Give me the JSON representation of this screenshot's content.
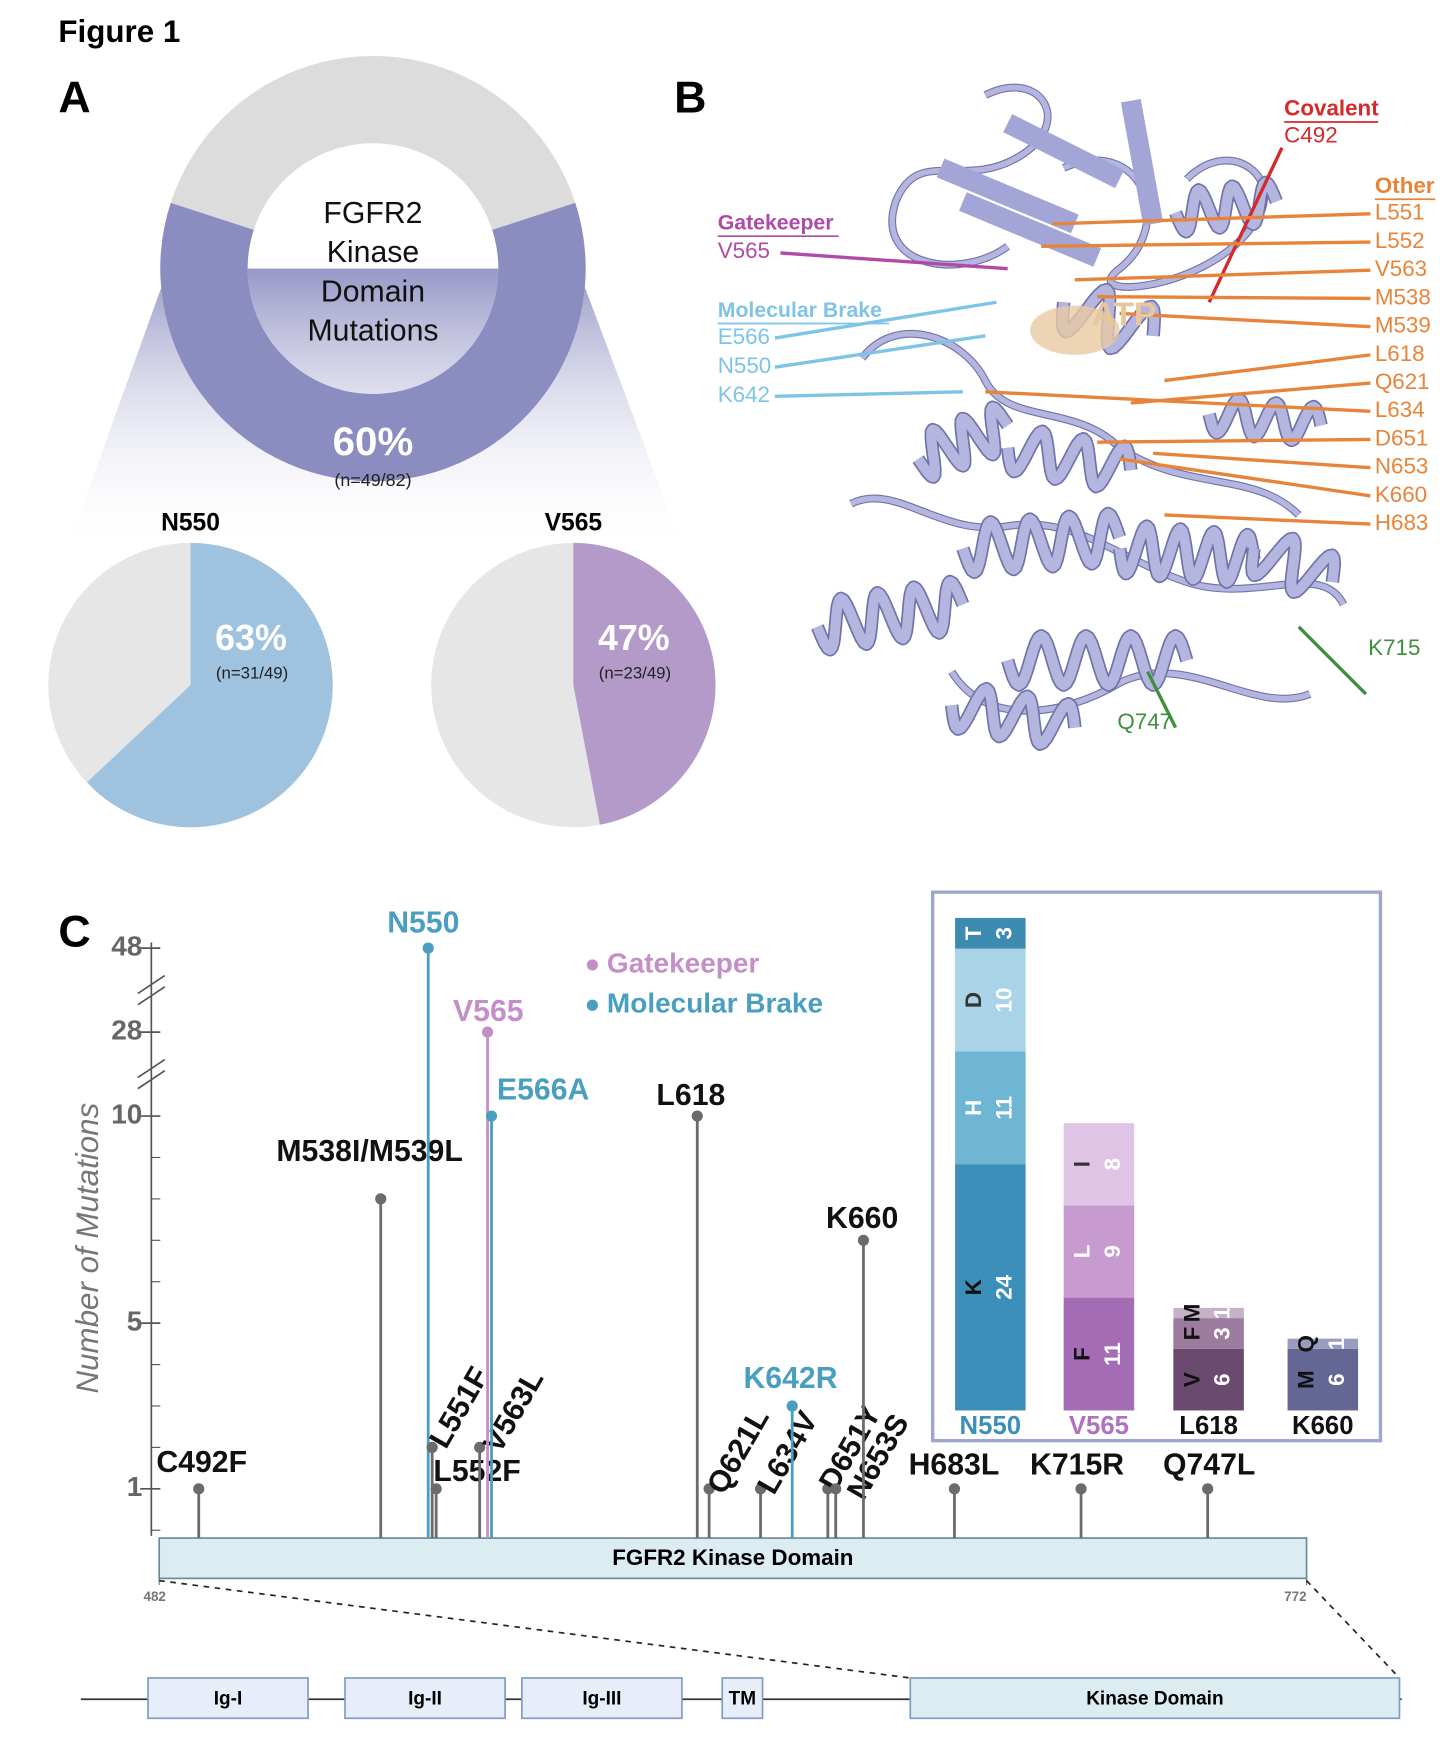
{
  "figure_title": "Figure 1",
  "panel_letters": [
    "A",
    "B",
    "C"
  ],
  "chart_data": [
    {
      "type": "donut",
      "center_label": [
        "FGFR2",
        "Kinase",
        "Domain",
        "Mutations"
      ],
      "values": [
        60
      ],
      "value_labels": [
        "60%"
      ],
      "annotation": "(n=49/82)",
      "color": "#8b8cc0",
      "rest_color": "#dcdcdc"
    },
    {
      "type": "pie",
      "title": "N550",
      "values": [
        63
      ],
      "value_labels": [
        "63%"
      ],
      "annotation": "(n=31/49)",
      "color": "#9fc3de",
      "rest_color": "#e6e6e6"
    },
    {
      "type": "pie",
      "title": "V565",
      "values": [
        47
      ],
      "value_labels": [
        "47%"
      ],
      "annotation": "(n=23/49)",
      "color": "#b49ac9",
      "rest_color": "#e6e6e6"
    },
    {
      "type": "lollipop",
      "y_label": "Number of Mutations",
      "domain_label": "FGFR2 Kinase Domain",
      "categories": [
        "C492F",
        "M538I/M539L",
        "N550",
        "L551F",
        "L552F",
        "V563L",
        "V565",
        "E566A",
        "L618",
        "Q621L",
        "L634V",
        "K642R",
        "D651Y",
        "N653S",
        "K660",
        "H683L",
        "K715R",
        "Q747L"
      ],
      "x": [
        492,
        538,
        550,
        551,
        552,
        563,
        565,
        566,
        618,
        621,
        634,
        642,
        651,
        653,
        660,
        683,
        715,
        747
      ],
      "values": [
        1,
        8,
        48,
        2,
        1,
        2,
        28,
        10,
        10,
        1,
        1,
        3,
        1,
        1,
        7,
        1,
        1,
        1
      ],
      "colors": [
        "#6b6b6b",
        "#6b6b6b",
        "#4a9fc0",
        "#6b6b6b",
        "#6b6b6b",
        "#6b6b6b",
        "#c48fc8",
        "#4a9fc0",
        "#6b6b6b",
        "#6b6b6b",
        "#6b6b6b",
        "#4a9fc0",
        "#6b6b6b",
        "#6b6b6b",
        "#6b6b6b",
        "#6b6b6b",
        "#6b6b6b",
        "#6b6b6b"
      ],
      "xlim": [
        482,
        772
      ],
      "xticks": [
        482,
        772
      ],
      "ylim": [
        0,
        48
      ],
      "yticks": [
        1,
        5,
        10,
        28,
        48
      ],
      "axis_break_above": 10,
      "legend": [
        {
          "name": "Gatekeeper",
          "color": "#c48fc8"
        },
        {
          "name": "Molecular Brake",
          "color": "#4a9fc0"
        }
      ]
    },
    {
      "type": "stacked_bar",
      "ylim": [
        0,
        48
      ],
      "categories": [
        "N550",
        "V565",
        "L618",
        "K660"
      ],
      "category_colors": [
        "#3d8fb8",
        "#b071bf",
        "#111111",
        "#111111"
      ],
      "stacks": [
        [
          {
            "label": "K",
            "value": 24,
            "color": "#3b8fb8"
          },
          {
            "label": "H",
            "value": 11,
            "color": "#6fb6d4"
          },
          {
            "label": "D",
            "value": 10,
            "color": "#a9d3e6"
          },
          {
            "label": "T",
            "value": 3,
            "color": "#3d8bb0"
          }
        ],
        [
          {
            "label": "F",
            "value": 11,
            "color": "#a46cb4"
          },
          {
            "label": "L",
            "value": 9,
            "color": "#c79ad0"
          },
          {
            "label": "I",
            "value": 8,
            "color": "#e0c4e6"
          }
        ],
        [
          {
            "label": "V",
            "value": 6,
            "color": "#6b4a6f"
          },
          {
            "label": "F",
            "value": 3,
            "color": "#9b7c9e"
          },
          {
            "label": "M",
            "value": 1,
            "color": "#c6b2c6"
          }
        ],
        [
          {
            "label": "M",
            "value": 6,
            "color": "#646794"
          },
          {
            "label": "Q",
            "value": 1,
            "color": "#9a9cbf"
          }
        ]
      ]
    }
  ],
  "structure": {
    "ligand": "ATP",
    "covalent": {
      "title": "Covalent",
      "residues": [
        "C492"
      ],
      "color": "#d42a2a"
    },
    "other": {
      "title": "Other",
      "residues": [
        "L551",
        "L552",
        "V563",
        "M538",
        "M539",
        "L618",
        "Q621",
        "L634",
        "D651",
        "N653",
        "K660",
        "H683"
      ],
      "color": "#e8843a"
    },
    "gatekeeper": {
      "title": "Gatekeeper",
      "residues": [
        "V565"
      ],
      "color": "#b04aa8"
    },
    "molecular_brake": {
      "title": "Molecular Brake",
      "residues": [
        "E566",
        "N550",
        "K642"
      ],
      "color": "#7ec4e6"
    },
    "surface": {
      "residues": [
        "K715",
        "Q747"
      ],
      "color": "#3e8f3e"
    }
  },
  "domains": [
    "Ig-I",
    "Ig-II",
    "Ig-III",
    "TM",
    "Kinase Domain"
  ]
}
